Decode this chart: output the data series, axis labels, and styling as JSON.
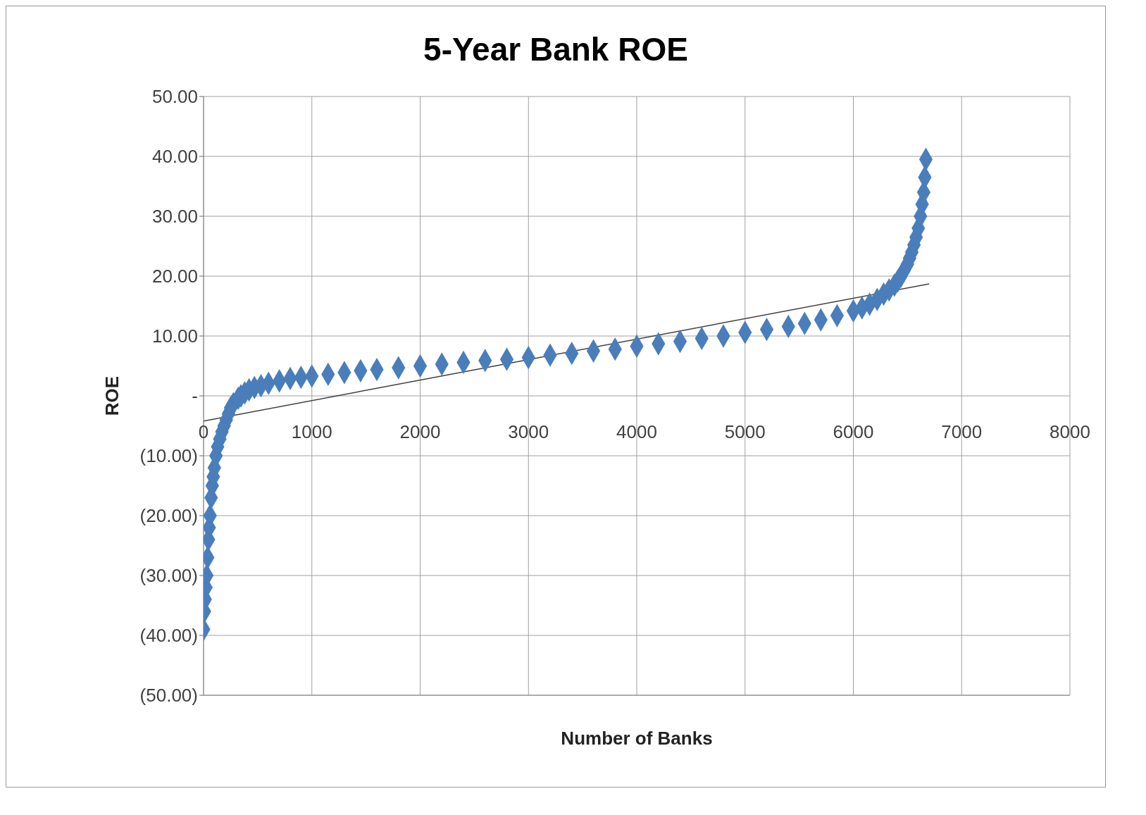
{
  "chart_data": {
    "type": "scatter",
    "title": "5-Year Bank ROE",
    "xlabel": "Number of Banks",
    "ylabel": "ROE",
    "xlim": [
      0,
      8000
    ],
    "xticks": [
      0,
      1000,
      2000,
      3000,
      4000,
      5000,
      6000,
      7000,
      8000
    ],
    "ylim": [
      -50,
      50
    ],
    "yticks": [
      {
        "value": -50,
        "label": "(50.00)"
      },
      {
        "value": -40,
        "label": "(40.00)"
      },
      {
        "value": -30,
        "label": "(30.00)"
      },
      {
        "value": -20,
        "label": "(20.00)"
      },
      {
        "value": -10,
        "label": "(10.00)"
      },
      {
        "value": 0,
        "label": "-"
      },
      {
        "value": 10,
        "label": "10.00"
      },
      {
        "value": 20,
        "label": "20.00"
      },
      {
        "value": 30,
        "label": "30.00"
      },
      {
        "value": 40,
        "label": "40.00"
      },
      {
        "value": 50,
        "label": "50.00"
      }
    ],
    "grid": true,
    "series": [
      {
        "marker": "diamond",
        "color": "#4a7ebb",
        "x": [
          0,
          8,
          15,
          22,
          30,
          38,
          45,
          52,
          60,
          70,
          80,
          90,
          100,
          115,
          130,
          150,
          170,
          190,
          210,
          230,
          250,
          275,
          320,
          345,
          380,
          420,
          470,
          530,
          600,
          700,
          800,
          900,
          1000,
          1150,
          1300,
          1450,
          1600,
          1800,
          2000,
          2200,
          2400,
          2600,
          2800,
          3000,
          3200,
          3400,
          3600,
          3800,
          4000,
          4200,
          4400,
          4600,
          4800,
          5000,
          5200,
          5400,
          5550,
          5700,
          5850,
          6000,
          6080,
          6150,
          6220,
          6280,
          6330,
          6380,
          6410,
          6440,
          6470,
          6500,
          6520,
          6540,
          6560,
          6580,
          6600,
          6620,
          6635,
          6650,
          6660,
          6670
        ],
        "values": [
          -39,
          -36,
          -34,
          -32,
          -30,
          -27,
          -24,
          -22,
          -20,
          -17,
          -15,
          -13.5,
          -12,
          -10,
          -8.5,
          -7.2,
          -6,
          -5,
          -4,
          -3,
          -2,
          -1.3,
          -0.4,
          0,
          0.5,
          1,
          1.4,
          1.7,
          2.1,
          2.5,
          2.9,
          3.1,
          3.3,
          3.6,
          3.9,
          4.2,
          4.4,
          4.7,
          5,
          5.3,
          5.6,
          5.9,
          6.1,
          6.4,
          6.8,
          7.1,
          7.5,
          7.8,
          8.3,
          8.7,
          9.1,
          9.6,
          10,
          10.6,
          11.1,
          11.6,
          12.1,
          12.7,
          13.4,
          14.2,
          14.7,
          15.3,
          16.1,
          17,
          17.7,
          18.5,
          19.2,
          20,
          21,
          22,
          23,
          24,
          25.2,
          26.5,
          28,
          30,
          32,
          34,
          36.5,
          39.5
        ]
      },
      {
        "type": "line",
        "color": "#404040",
        "x": [
          0,
          6700
        ],
        "values": [
          -4.2,
          18.7
        ]
      }
    ]
  }
}
